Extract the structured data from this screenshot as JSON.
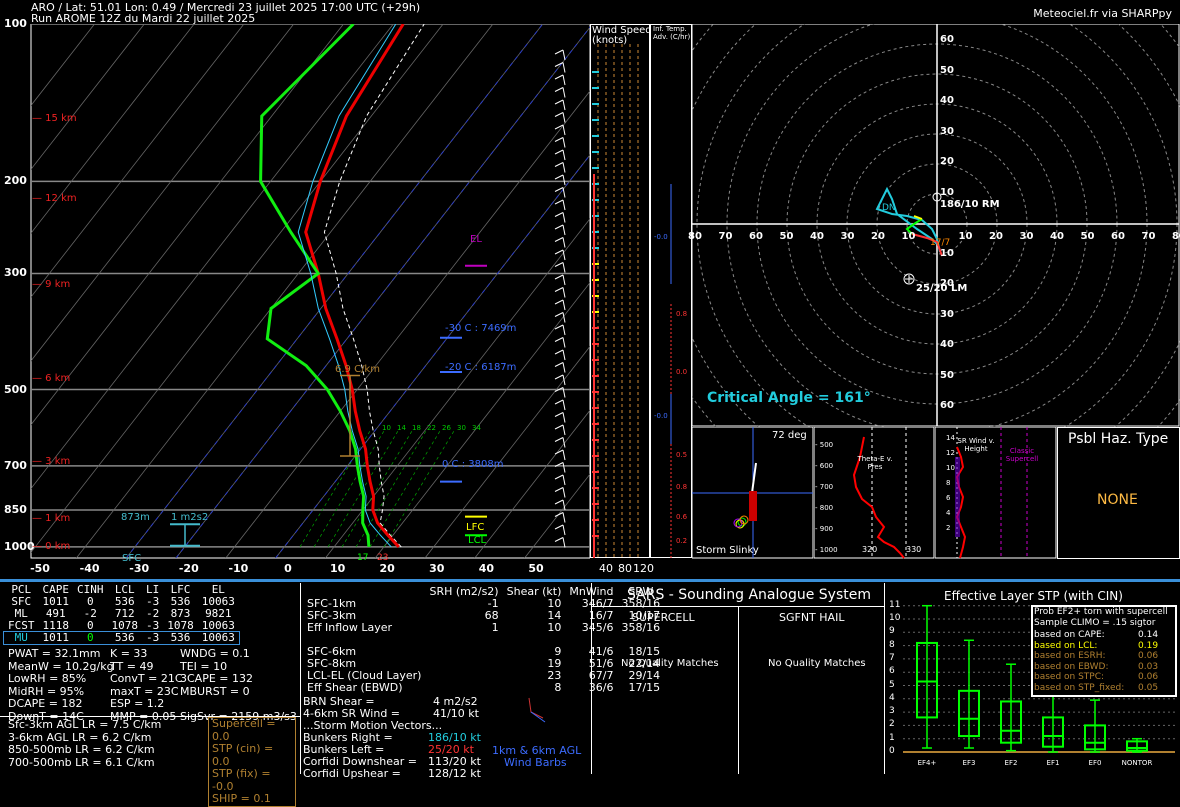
{
  "header": {
    "line1": "ARO / Lat: 51.01 Lon: 0.49 / Mercredi 23 juillet 2025 17:00 UTC (+29h)",
    "line2": "Run AROME 12Z du Mardi 22 juillet 2025",
    "credit": "Meteociel.fr via SHARPpy"
  },
  "skewt": {
    "pressure_ticks": [
      "100",
      "200",
      "300",
      "500",
      "700",
      "850",
      "1000"
    ],
    "temp_ticks": [
      "-50",
      "-40",
      "-30",
      "-20",
      "-10",
      "0",
      "10",
      "20",
      "30",
      "40",
      "50"
    ],
    "height_labels": [
      "15 km",
      "12 km",
      "9 km",
      "6 km",
      "3 km",
      "1 km",
      "0 km"
    ],
    "el_label": "EL",
    "lfc_label": "LFC",
    "lcl_label": "LCL",
    "iso_m30": "-30 C : 7469m",
    "iso_m20": "-20 C : 6187m",
    "iso_0": "0 C : 3808m",
    "lapse": "6.9 C/km",
    "eff_inflow_h": "873m",
    "eff_inflow_srh": "1 m2s2",
    "sfc": "SFC",
    "mix_labels": [
      "10",
      "14",
      "18",
      "22",
      "26",
      "30",
      "34"
    ],
    "sfc_temp": "23",
    "sfc_dew": "17"
  },
  "windspeed": {
    "title1": "Wind Speed",
    "title2": "(knots)",
    "ticks": [
      "40",
      "80",
      "120"
    ]
  },
  "inftemp": {
    "title1": "Inf. Temp.",
    "title2": "Adv. (C/hr)",
    "vals": [
      "0.0",
      "0.8",
      "0.0",
      "0.0",
      "0.5",
      "0.8",
      "0.6",
      "0.2"
    ],
    "neg_vals": [
      "-0.0",
      "-0.0"
    ]
  },
  "hodo": {
    "x_ticks": [
      "80",
      "70",
      "60",
      "50",
      "40",
      "30",
      "20",
      "10",
      "10",
      "20",
      "30",
      "40",
      "50",
      "60",
      "70",
      "80"
    ],
    "y_ticks_up": [
      "60",
      "50",
      "40",
      "30",
      "20",
      "10"
    ],
    "y_ticks_dn": [
      "10",
      "20",
      "30",
      "40",
      "50",
      "60"
    ],
    "rm": "186/10 RM",
    "lm": "25/20 LM",
    "critical": "Critical Angle = 161°",
    "mean": "DN",
    "extra": "17/7"
  },
  "slinky": {
    "title": "Storm Slinky",
    "deg": "72 deg"
  },
  "thetae": {
    "title": "Theta-E v. Pres",
    "p_ticks": [
      "500",
      "600",
      "700",
      "800",
      "900",
      "1000"
    ],
    "t_ticks": [
      "320",
      "330"
    ]
  },
  "srwind": {
    "title": "SR Wind v. Height",
    "classic": "Classic Supercell",
    "h_ticks": [
      "14",
      "12",
      "10",
      "8",
      "6",
      "4",
      "2"
    ]
  },
  "haz": {
    "title": "Psbl Haz. Type",
    "value": "NONE"
  },
  "parcels": {
    "headers": [
      "PCL",
      "CAPE",
      "CINH",
      "LCL",
      "LI",
      "LFC",
      "EL"
    ],
    "rows": [
      [
        "SFC",
        "1011",
        "0",
        "536",
        "-3",
        "536",
        "10063"
      ],
      [
        "ML",
        "491",
        "-2",
        "712",
        "-2",
        "873",
        "9821"
      ],
      [
        "FCST",
        "1118",
        "0",
        "1078",
        "-3",
        "1078",
        "10063"
      ],
      [
        "MU",
        "1011",
        "0",
        "536",
        "-3",
        "536",
        "10063"
      ]
    ]
  },
  "indices": {
    "col1": [
      "PWAT = 32.1mm",
      "MeanW = 10.2g/kg",
      "LowRH = 85%",
      "MidRH = 95%",
      "DCAPE = 182",
      "DownT = 14C"
    ],
    "col2": [
      "K = 33",
      "TT = 49",
      "ConvT = 21C",
      "maxT = 23C",
      "ESP = 1.2",
      "MMP = 0.05"
    ],
    "col3": [
      "WNDG = 0.1",
      "TEI = 10",
      "3CAPE = 132",
      "MBURST = 0",
      "",
      "SigSvr = 2159 m3/s3"
    ],
    "lr": [
      "Sfc-3km AGL LR = 7.5 C/km",
      "3-6km AGL LR = 6.2 C/km",
      "850-500mb LR = 6.2 C/km",
      "700-500mb LR = 6.1 C/km"
    ],
    "sup": [
      "Supercell = 0.0",
      "STP (cin) = 0.0",
      "STP (fix) = -0.0",
      "SHIP = 0.1"
    ]
  },
  "kinematics": {
    "headers": [
      "SRH (m2/s2)",
      "Shear (kt)",
      "MnWind",
      "SRW"
    ],
    "rows": [
      [
        "SFC-1km",
        "-1",
        "10",
        "346/7",
        "358/16"
      ],
      [
        "SFC-3km",
        "68",
        "14",
        "16/7",
        "10/17"
      ],
      [
        "Eff Inflow Layer",
        "1",
        "10",
        "345/6",
        "358/16"
      ],
      [
        "",
        "",
        "",
        "",
        ""
      ],
      [
        "SFC-6km",
        "",
        "9",
        "41/6",
        "18/15"
      ],
      [
        "SFC-8km",
        "",
        "19",
        "51/6",
        "22/14"
      ],
      [
        "LCL-EL (Cloud Layer)",
        "",
        "23",
        "67/7",
        "29/14"
      ],
      [
        "Eff Shear (EBWD)",
        "",
        "8",
        "36/6",
        "17/15"
      ]
    ],
    "brn": [
      "BRN Shear =",
      "4 m2/s2"
    ],
    "srw46": [
      "4-6km SR Wind =",
      "41/10 kt"
    ],
    "storm_title": "...Storm Motion Vectors...",
    "motions": [
      [
        "Bunkers Right =",
        "186/10 kt"
      ],
      [
        "Bunkers Left =",
        "25/20 kt"
      ],
      [
        "Corfidi Downshear =",
        "113/20 kt"
      ],
      [
        "Corfidi Upshear =",
        "128/12 kt"
      ]
    ],
    "barb_label1": "1km & 6km AGL",
    "barb_label2": "Wind Barbs"
  },
  "sars": {
    "title": "SARS - Sounding Analogue System",
    "sup": "SUPERCELL",
    "hail": "SGFNT HAIL",
    "sup_res": "No Quality Matches",
    "hail_res": "No Quality Matches"
  },
  "stp": {
    "title": "Effective Layer STP (with CIN)",
    "y_ticks": [
      "11",
      "10",
      "9",
      "8",
      "7",
      "6",
      "5",
      "4",
      "3",
      "2",
      "1",
      "0"
    ],
    "cats": [
      "EF4+",
      "EF3",
      "EF2",
      "EF1",
      "EF0",
      "NONTOR"
    ],
    "box_title1": "Prob EF2+ torn with supercell",
    "box_title2": "Sample CLIMO = .15 sigtor",
    "box_rows": [
      [
        "based on CAPE:",
        "0.14"
      ],
      [
        "based on LCL:",
        "0.19"
      ],
      [
        "based on ESRH:",
        "0.06"
      ],
      [
        "based on EBWD:",
        "0.03"
      ],
      [
        "based on STPC:",
        "0.06"
      ],
      [
        "based on STP_fixed:",
        "0.05"
      ]
    ],
    "chart_data": {
      "type": "box",
      "categories": [
        "EF4+",
        "EF3",
        "EF2",
        "EF1",
        "EF0",
        "NONTOR"
      ],
      "series": [
        {
          "min": [
            0.3,
            0.3,
            0.1,
            0,
            0,
            0
          ],
          "q1": [
            2.6,
            1.2,
            0.7,
            0.4,
            0.2,
            0.1
          ],
          "median": [
            5.3,
            2.5,
            1.6,
            1.2,
            0.7,
            0.3
          ],
          "q3": [
            8.2,
            4.6,
            3.8,
            2.6,
            2.0,
            0.8
          ],
          "max": [
            11.0,
            8.4,
            6.6,
            4.3,
            3.9,
            1.0
          ]
        }
      ],
      "ylim": [
        0,
        11
      ]
    }
  },
  "chart_data": {
    "type": "line",
    "title": "",
    "xlabel": "",
    "ylabel": "",
    "pressure_levels": [
      1000,
      950,
      900,
      850,
      800,
      750,
      700,
      650,
      600,
      550,
      500,
      450,
      400,
      350,
      300,
      250,
      200,
      150,
      100
    ],
    "series": [
      {
        "name": "Temperature",
        "values": [
          23,
          19,
          15,
          12,
          10,
          7,
          4,
          1,
          -3,
          -7,
          -11,
          -16,
          -22,
          -29,
          -36,
          -45,
          -50,
          -55,
          -58
        ]
      },
      {
        "name": "Dewpoint",
        "values": [
          17,
          15,
          12,
          10,
          8,
          5,
          2,
          -1,
          -5,
          -10,
          -16,
          -24,
          -36,
          -40,
          -36,
          -48,
          -62,
          -72,
          -68
        ]
      }
    ],
    "xlim": [
      -50,
      50
    ],
    "ylim": [
      1050,
      100
    ]
  }
}
